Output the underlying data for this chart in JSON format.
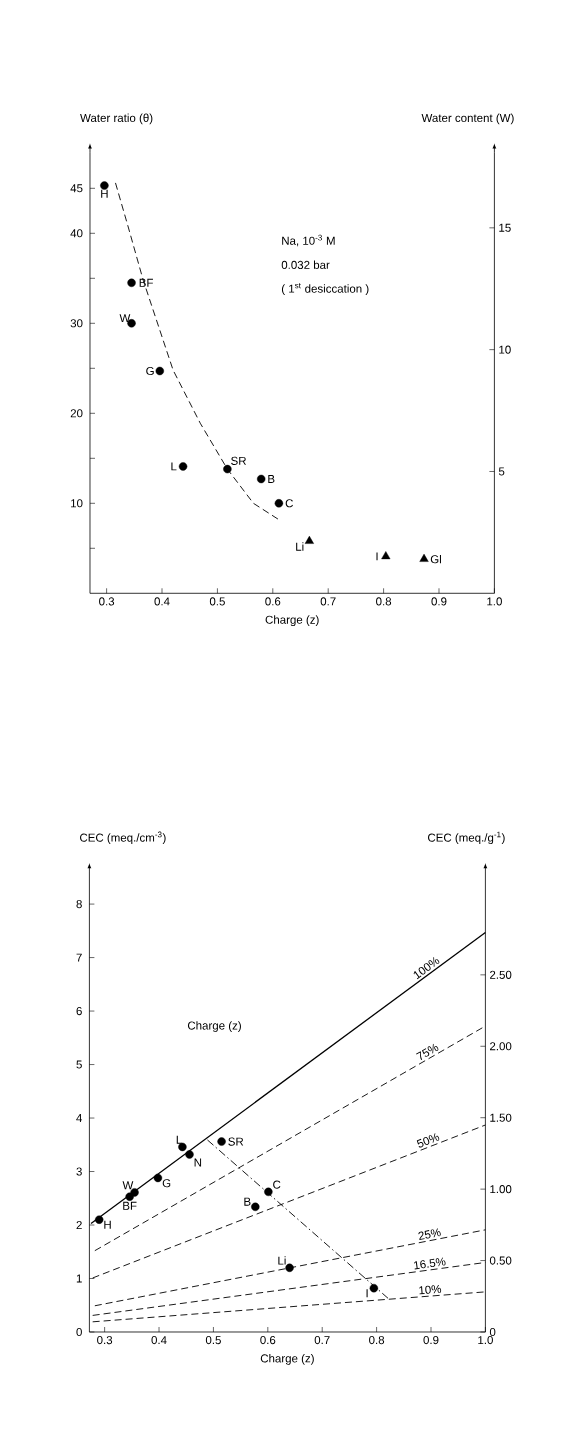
{
  "chart_data": [
    {
      "type": "scatter",
      "xlabel": "Charge (z)",
      "ylabel": "Water ratio (θ)",
      "y2label": "Water content (W)",
      "xlim": [
        0.27,
        1.0
      ],
      "ylim": [
        0,
        49
      ],
      "y2lim": [
        0,
        18.1
      ],
      "xticks": [
        0.3,
        0.4,
        0.5,
        0.6,
        0.7,
        0.8,
        0.9,
        {
          "value": 1.0,
          "label": "1.0"
        }
      ],
      "yticks": [
        {
          "value": 5,
          "label": null
        },
        10,
        {
          "value": 15,
          "label": null
        },
        20,
        {
          "value": 25,
          "label": null
        },
        30,
        {
          "value": 35,
          "label": null
        },
        40,
        45
      ],
      "y2ticks": [
        5,
        10,
        15
      ],
      "series": [
        {
          "type": "scatter",
          "marker": "circle",
          "color": "#000000",
          "x": [
            0.296,
            0.345,
            0.345,
            0.396,
            0.438,
            0.518,
            0.579,
            0.611
          ],
          "values": [
            45.3,
            34.5,
            30.0,
            24.7,
            14.1,
            13.8,
            12.7,
            10.0
          ]
        },
        {
          "type": "scatter",
          "marker": "triangle",
          "color": "#000000",
          "x": [
            0.666,
            0.804,
            0.873
          ],
          "values": [
            5.8,
            4.1,
            3.8
          ]
        },
        {
          "type": "line",
          "marker": "none",
          "line_style": "dashed",
          "color": "#000000",
          "x": [
            0.316,
            0.339,
            0.366,
            0.42,
            0.469,
            0.518,
            0.565,
            0.613
          ],
          "values": [
            45.6,
            40.7,
            34.8,
            24.8,
            18.9,
            13.8,
            10.0,
            8.1
          ]
        }
      ],
      "annotations": [
        {
          "text": "H",
          "x": 0.296,
          "y": 45.3
        },
        {
          "text": "BF",
          "x": 0.345,
          "y": 34.5
        },
        {
          "text": "W",
          "x": 0.345,
          "y": 30.0
        },
        {
          "text": "G",
          "x": 0.396,
          "y": 24.7
        },
        {
          "text": "L",
          "x": 0.438,
          "y": 14.1
        },
        {
          "text": "SR",
          "x": 0.518,
          "y": 13.8
        },
        {
          "text": "B",
          "x": 0.579,
          "y": 12.7
        },
        {
          "text": "C",
          "x": 0.611,
          "y": 10.0
        },
        {
          "text": "Li",
          "x": 0.666,
          "y": 5.8
        },
        {
          "text": "I",
          "x": 0.804,
          "y": 4.1
        },
        {
          "text": "Gl",
          "x": 0.873,
          "y": 3.8
        },
        "Na, 10$^{-3}$ M",
        "0.032 bar",
        "( 1$^{st}$ desiccation )"
      ]
    },
    {
      "type": "line",
      "xlabel": "Charge (z)",
      "ylabel": "CEC (meq./cm$^{-3}$)",
      "y2label": "CEC (meq./g$^{-1}$)",
      "xlim": [
        0.272,
        1.0
      ],
      "ylim": [
        0,
        8.6
      ],
      "y2lim": [
        0,
        3.22
      ],
      "xticks": [
        0.3,
        0.4,
        0.5,
        0.6,
        0.7,
        0.8,
        0.9,
        {
          "value": 1.0,
          "label": "1.0"
        }
      ],
      "yticks": [
        0,
        1,
        2,
        3,
        4,
        5,
        6,
        7,
        8
      ],
      "y2ticks": [
        0,
        {
          "value": 0.5,
          "label": "0.50"
        },
        {
          "value": 1.0,
          "label": "1.00"
        },
        {
          "value": 1.5,
          "label": "1.50"
        },
        {
          "value": 2.0,
          "label": "2.00"
        },
        {
          "value": 2.5,
          "label": "2.50"
        }
      ],
      "series": [
        {
          "name": "100%",
          "line_style": "solid",
          "color": "#000000",
          "x": [
            0.275,
            1.0
          ],
          "values": [
            2.03,
            7.47
          ]
        },
        {
          "name": "75%",
          "line_style": "dashed",
          "color": "#000000",
          "x": [
            0.282,
            1.0
          ],
          "values": [
            1.52,
            5.72
          ]
        },
        {
          "name": "50%",
          "line_style": "dashed",
          "color": "#000000",
          "x": [
            0.278,
            1.0
          ],
          "values": [
            1.01,
            3.87
          ]
        },
        {
          "name": "25%",
          "line_style": "dashed",
          "color": "#000000",
          "x": [
            0.282,
            1.0
          ],
          "values": [
            0.49,
            1.91
          ]
        },
        {
          "name": "16.5%",
          "line_style": "dashed",
          "color": "#000000",
          "x": [
            0.278,
            1.0
          ],
          "values": [
            0.31,
            1.3
          ]
        },
        {
          "name": "10%",
          "line_style": "dashed",
          "color": "#000000",
          "x": [
            0.278,
            1.0
          ],
          "values": [
            0.19,
            0.75
          ]
        },
        {
          "line_style": "dashdot",
          "color": "#000000",
          "x": [
            0.489,
            0.821
          ],
          "values": [
            3.59,
            0.63
          ]
        },
        {
          "type": "scatter",
          "marker": "circle",
          "color": "#000000",
          "x": [
            0.29,
            0.346,
            0.355,
            0.398,
            0.443,
            0.456,
            0.515,
            0.577,
            0.601,
            0.64,
            0.795
          ],
          "values": [
            2.1,
            2.53,
            2.61,
            2.88,
            3.46,
            3.32,
            3.56,
            2.34,
            2.62,
            1.2,
            0.82
          ]
        }
      ],
      "annotations": [
        {
          "text": "H",
          "x": 0.29,
          "y": 2.1
        },
        {
          "text": "BF",
          "x": 0.346,
          "y": 2.53
        },
        {
          "text": "W",
          "x": 0.355,
          "y": 2.61
        },
        {
          "text": "G",
          "x": 0.398,
          "y": 2.88
        },
        {
          "text": "L",
          "x": 0.443,
          "y": 3.46
        },
        {
          "text": "N",
          "x": 0.456,
          "y": 3.32
        },
        {
          "text": "SR",
          "x": 0.515,
          "y": 3.56
        },
        {
          "text": "B",
          "x": 0.577,
          "y": 2.34
        },
        {
          "text": "C",
          "x": 0.601,
          "y": 2.62
        },
        {
          "text": "Li",
          "x": 0.64,
          "y": 1.2
        },
        {
          "text": "I",
          "x": 0.795,
          "y": 0.82
        },
        "Charge (z)"
      ]
    }
  ]
}
